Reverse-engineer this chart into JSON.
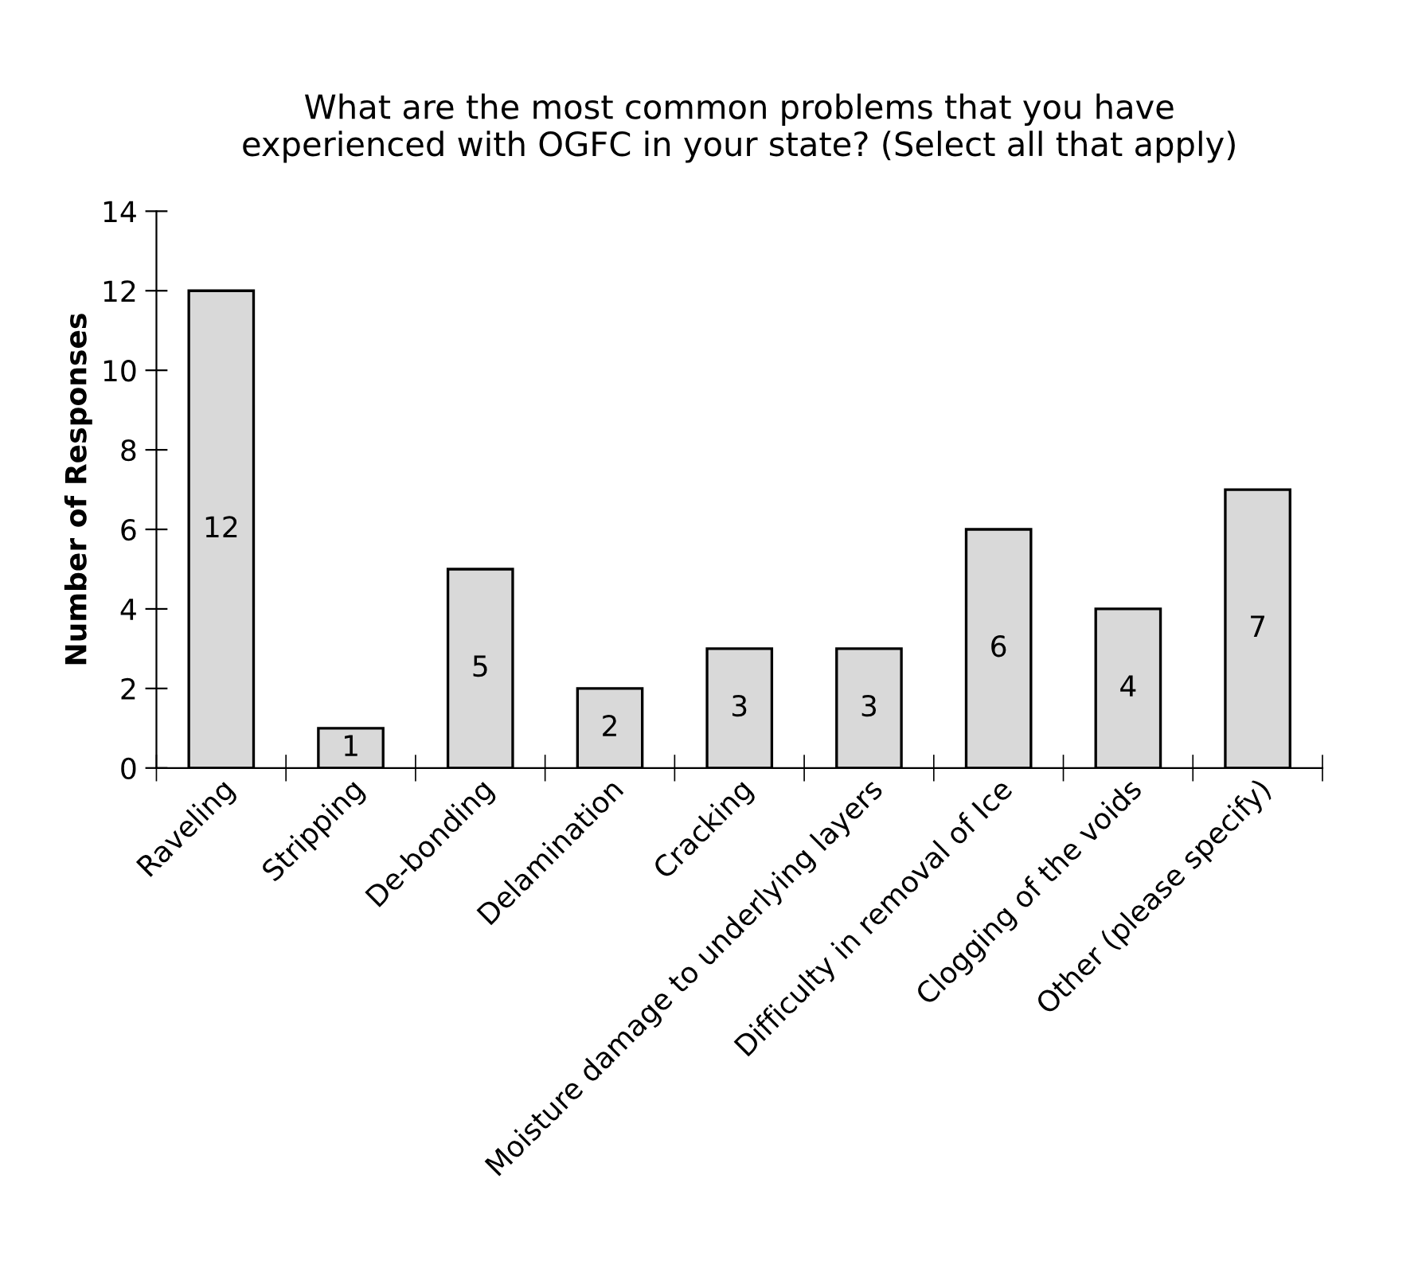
{
  "chart_data": {
    "type": "bar",
    "title": "What are the most common problems that you have\nexperienced with OGFC in your state? (Select all that apply)",
    "ylabel": "Number of Responses",
    "categories": [
      "Raveling",
      "Stripping",
      "De-bonding",
      "Delamination",
      "Cracking",
      "Moisture damage to underlying layers",
      "Difficulty in removal of Ice",
      "Clogging of the voids",
      "Other (please specify)"
    ],
    "values": [
      12,
      1,
      5,
      2,
      3,
      3,
      6,
      4,
      7
    ],
    "color": "#d9d9d9",
    "ylim": [
      0,
      14
    ],
    "yticks": [
      0,
      2,
      4,
      6,
      8,
      10,
      12,
      14
    ],
    "grid": false,
    "data_labels": true,
    "legend": false
  }
}
